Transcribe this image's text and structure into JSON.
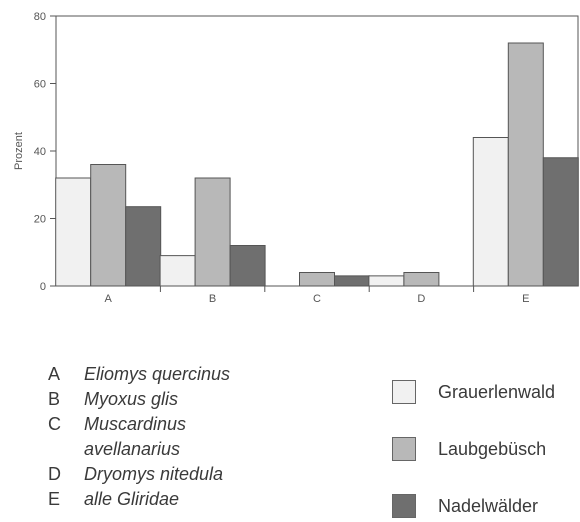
{
  "chart_data": {
    "type": "bar",
    "categories": [
      "A",
      "B",
      "C",
      "D",
      "E"
    ],
    "series": [
      {
        "name": "Grauerlenwald",
        "color": "#f1f1f1",
        "values": [
          32,
          9,
          null,
          3,
          44
        ]
      },
      {
        "name": "Laubgebüsch",
        "color": "#b8b8b8",
        "values": [
          36,
          32,
          4,
          4,
          72
        ]
      },
      {
        "name": "Nadelwälder",
        "color": "#6f6f6f",
        "values": [
          23.5,
          12,
          3,
          null,
          38
        ]
      }
    ],
    "ylabel": "Prozent",
    "ylim": [
      0,
      80
    ],
    "yticks": [
      "0",
      "20",
      "40",
      "60",
      "80"
    ],
    "grid": false
  },
  "species_legend": [
    {
      "letter": "A",
      "name": "Eliomys quercinus"
    },
    {
      "letter": "B",
      "name": "Myoxus glis"
    },
    {
      "letter": "C",
      "name": "Muscardinus"
    },
    {
      "letter": "",
      "name": "avellanarius"
    },
    {
      "letter": "D",
      "name": "Dryomys nitedula"
    },
    {
      "letter": "E",
      "name": "alle Gliridae"
    }
  ]
}
